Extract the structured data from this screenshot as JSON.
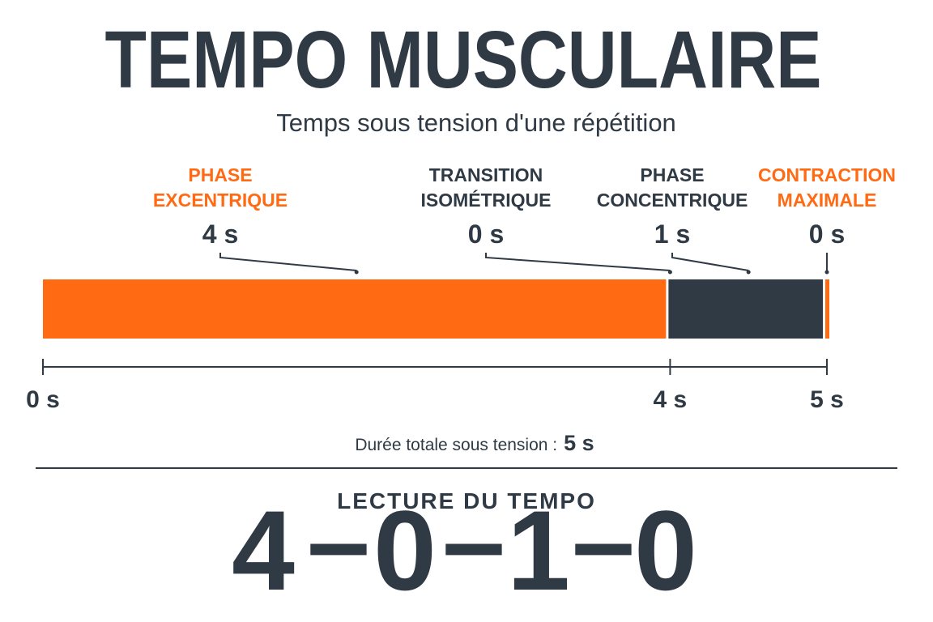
{
  "header": {
    "title": "TEMPO MUSCULAIRE",
    "subtitle": "Temps sous tension d'une répétition"
  },
  "phases": [
    {
      "label_lines": [
        "PHASE",
        "EXCENTRIQUE"
      ],
      "duration": 4,
      "duration_label": "4 s",
      "color": "#ff6a13"
    },
    {
      "label_lines": [
        "TRANSITION",
        "ISOMÉTRIQUE"
      ],
      "duration": 0,
      "duration_label": "0 s",
      "color": "#2f3a45"
    },
    {
      "label_lines": [
        "PHASE",
        "CONCENTRIQUE"
      ],
      "duration": 1,
      "duration_label": "1 s",
      "color": "#2f3a45"
    },
    {
      "label_lines": [
        "CONTRACTION",
        "MAXIMALE"
      ],
      "duration": 0,
      "duration_label": "0 s",
      "color": "#ff6a13"
    }
  ],
  "axis": {
    "range": [
      0,
      5
    ],
    "ticks": [
      {
        "value": 0,
        "label": "0 s"
      },
      {
        "value": 4,
        "label": "4 s"
      },
      {
        "value": 5,
        "label": "5 s"
      }
    ]
  },
  "total": {
    "label": "Durée totale sous tension :",
    "value_label": "5 s"
  },
  "tempo": {
    "title": "LECTURE DU TEMPO",
    "separator": "–",
    "digits": [
      {
        "text": "4",
        "color": "#ff6a13"
      },
      {
        "text": "0",
        "color": "#2f3a45"
      },
      {
        "text": "1",
        "color": "#2f3a45"
      },
      {
        "text": "0",
        "color": "#ff6a13"
      }
    ]
  }
}
